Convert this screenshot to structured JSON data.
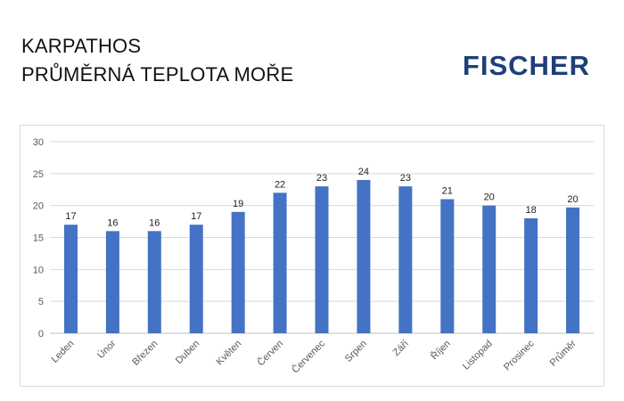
{
  "header": {
    "title_line1": "KARPATHOS",
    "title_line2": "PRŮMĚRNÁ TEPLOTA MOŘE",
    "logo_text": "FISCHER"
  },
  "colors": {
    "bar": "#4472c4",
    "logo": "#1f3f78"
  },
  "chart_data": {
    "type": "bar",
    "title": "",
    "xlabel": "",
    "ylabel": "",
    "ylim": [
      0,
      30
    ],
    "yticks": [
      0,
      5,
      10,
      15,
      20,
      25,
      30
    ],
    "grid": true,
    "categories": [
      "Leden",
      "Únor",
      "Březen",
      "Duben",
      "Květen",
      "Červen",
      "Červenec",
      "Srpen",
      "Září",
      "Říjen",
      "Listopad",
      "Prosinec",
      "Průměr"
    ],
    "values": [
      17,
      16,
      16,
      17,
      19,
      22,
      23,
      24,
      23,
      21,
      20,
      18,
      19.7
    ],
    "data_labels": [
      "17",
      "16",
      "16",
      "17",
      "19",
      "22",
      "23",
      "24",
      "23",
      "21",
      "20",
      "18",
      "20"
    ]
  }
}
